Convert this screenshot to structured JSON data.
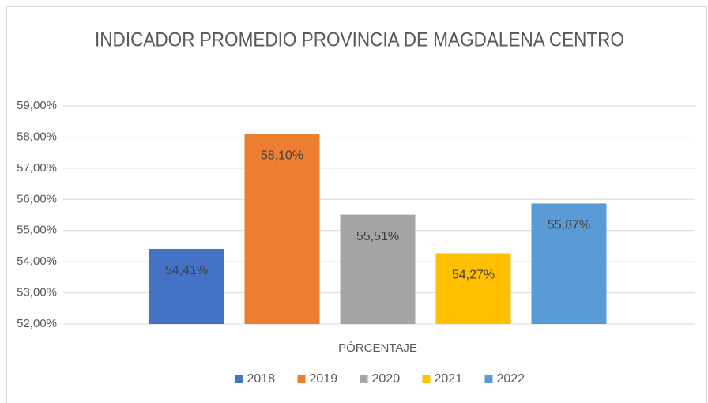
{
  "chart_data": {
    "type": "bar",
    "title": "INDICADOR PROMEDIO PROVINCIA DE MAGDALENA CENTRO",
    "categories": [
      "PÓRCENTAJE"
    ],
    "series": [
      {
        "name": "2018",
        "color": "#4472c4",
        "values": [
          54.41
        ],
        "value_labels": [
          "54,41%"
        ]
      },
      {
        "name": "2019",
        "color": "#ed7d31",
        "values": [
          58.1
        ],
        "value_labels": [
          "58,10%"
        ]
      },
      {
        "name": "2020",
        "color": "#a5a5a5",
        "values": [
          55.51
        ],
        "value_labels": [
          "55,51%"
        ]
      },
      {
        "name": "2021",
        "color": "#ffc000",
        "values": [
          54.27
        ],
        "value_labels": [
          "54,27%"
        ]
      },
      {
        "name": "2022",
        "color": "#5b9bd5",
        "values": [
          55.87
        ],
        "value_labels": [
          "55,87%"
        ]
      }
    ],
    "ylim": [
      52,
      59
    ],
    "yticks": [
      {
        "value": 52,
        "label": "52,00%"
      },
      {
        "value": 53,
        "label": "53,00%"
      },
      {
        "value": 54,
        "label": "54,00%"
      },
      {
        "value": 55,
        "label": "55,00%"
      },
      {
        "value": 56,
        "label": "56,00%"
      },
      {
        "value": 57,
        "label": "57,00%"
      },
      {
        "value": 58,
        "label": "58,00%"
      },
      {
        "value": 59,
        "label": "59,00%"
      }
    ],
    "grid": true,
    "legend": "bottom"
  }
}
